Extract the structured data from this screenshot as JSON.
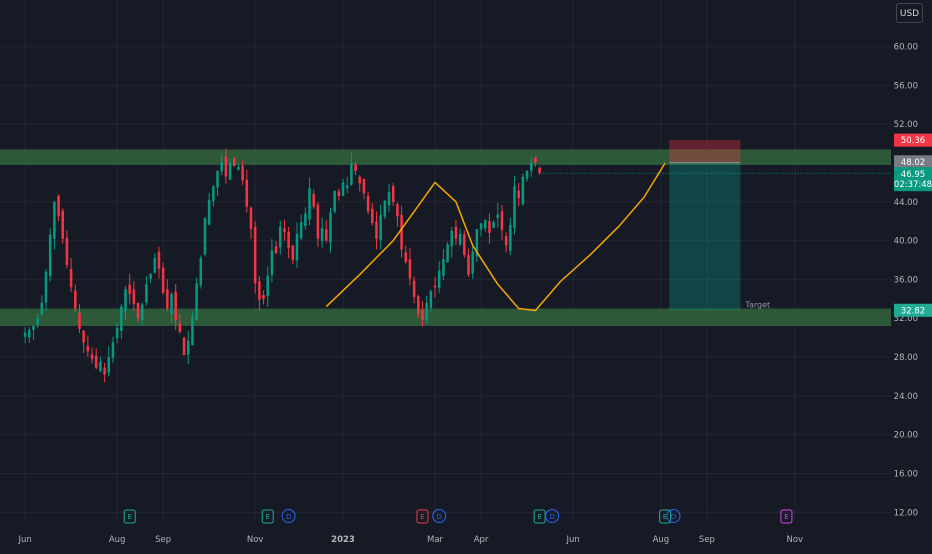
{
  "currency": "USD",
  "chart_data": {
    "type": "candlestick",
    "y_axis": {
      "ticks": [
        60.0,
        56.0,
        52.0,
        48.0,
        44.0,
        40.0,
        36.0,
        32.0,
        28.0,
        24.0,
        20.0,
        16.0,
        12.0
      ],
      "range": [
        11.0,
        64.8
      ]
    },
    "x_axis": {
      "ticks": [
        "Jun",
        "Aug",
        "Sep",
        "Nov",
        "2023",
        "Mar",
        "Apr",
        "Jun",
        "Aug",
        "Sep",
        "Nov"
      ],
      "bold_ticks": [
        "2023"
      ]
    },
    "x_index": {
      "ticks": [
        0,
        22,
        33,
        55,
        76,
        98,
        109,
        131,
        152,
        163,
        184
      ],
      "range": [
        -6,
        207
      ]
    },
    "resistance_zone": {
      "low": 47.8,
      "high": 49.4
    },
    "support_zone": {
      "low": 31.2,
      "high": 33.0
    },
    "trade": {
      "type": "short",
      "entry": 48.02,
      "stop": 50.36,
      "target": 32.82,
      "start_index": 154,
      "end_index": 171,
      "target_label": "Target"
    },
    "price_labels": [
      {
        "value": "50.36",
        "price": 50.36,
        "color": "#f23645"
      },
      {
        "value": "48.02",
        "price": 48.02,
        "color": "#787b86"
      },
      {
        "value": "46.95",
        "price": 46.95,
        "color": "#089981",
        "sub": "02:37:48"
      },
      {
        "value": "32.82",
        "price": 32.82,
        "color": "#22ab94"
      }
    ],
    "last_price": 46.95,
    "countdown": "02:37:48",
    "path_points": [
      [
        72,
        33.2
      ],
      [
        80,
        36.5
      ],
      [
        88,
        40.0
      ],
      [
        93,
        43.0
      ],
      [
        98,
        46.0
      ],
      [
        103,
        44.0
      ],
      [
        107,
        39.5
      ],
      [
        113,
        35.5
      ],
      [
        118,
        33.0
      ],
      [
        122,
        32.8
      ],
      [
        128,
        35.8
      ],
      [
        135,
        38.5
      ],
      [
        142,
        41.5
      ],
      [
        148,
        44.5
      ],
      [
        153,
        48.0
      ]
    ],
    "events": [
      {
        "index": 25,
        "kind": "E",
        "color": "#22ab94"
      },
      {
        "index": 58,
        "kind": "E",
        "color": "#22ab94"
      },
      {
        "index": 63,
        "kind": "D",
        "color": "#2962ff"
      },
      {
        "index": 95,
        "kind": "E",
        "color": "#f23645"
      },
      {
        "index": 99,
        "kind": "D",
        "color": "#2962ff"
      },
      {
        "index": 123,
        "kind": "E",
        "color": "#22ab94"
      },
      {
        "index": 126,
        "kind": "D",
        "color": "#2962ff"
      },
      {
        "index": 153,
        "kind": "E",
        "color": "#22ab94"
      },
      {
        "index": 155,
        "kind": "D",
        "color": "#2962ff"
      },
      {
        "index": 182,
        "kind": "E",
        "color": "#e040fb"
      }
    ],
    "closes": [
      30.5,
      30.8,
      31.2,
      32.0,
      33.6,
      36.8,
      40.6,
      44.0,
      42.5,
      40.2,
      37.5,
      35.2,
      33.0,
      30.9,
      29.5,
      28.6,
      27.8,
      26.9,
      27.5,
      26.2,
      28.0,
      29.5,
      31.0,
      33.2,
      35.0,
      34.5,
      33.5,
      32.0,
      33.4,
      35.5,
      36.6,
      38.2,
      37.1,
      34.6,
      33.0,
      34.5,
      31.8,
      30.6,
      28.2,
      29.7,
      32.1,
      35.6,
      38.2,
      42.3,
      44.2,
      45.6,
      47.2,
      48.1,
      46.6,
      48.0,
      47.7,
      47.6,
      46.2,
      43.5,
      41.2,
      35.6,
      33.9,
      34.0,
      36.4,
      39.0,
      38.7,
      41.4,
      40.9,
      39.2,
      38.0,
      40.7,
      41.9,
      42.8,
      45.4,
      43.5,
      40.2,
      41.3,
      40.0,
      42.9,
      45.1,
      44.6,
      46.0,
      45.7,
      48.0,
      47.2,
      45.9,
      44.9,
      43.0,
      41.8,
      40.2,
      42.6,
      44.1,
      45.0,
      44.0,
      42.5,
      39.1,
      37.8,
      36.1,
      34.2,
      32.5,
      31.8,
      33.6,
      34.8,
      35.2,
      36.9,
      38.1,
      39.6,
      41.0,
      40.2,
      40.7,
      38.5,
      36.5,
      38.9,
      41.2,
      41.8,
      42.1,
      40.8,
      41.9,
      42.7,
      41.1,
      39.5,
      41.6,
      45.6,
      44.4,
      46.6,
      47.2,
      48.0,
      48.02,
      46.95
    ],
    "volatility": 1.3
  }
}
